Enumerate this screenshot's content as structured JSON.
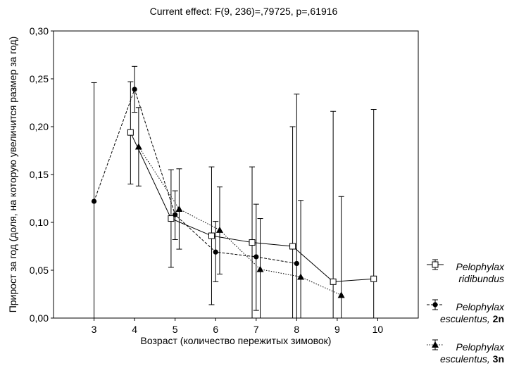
{
  "chart_data": {
    "type": "line",
    "title": "Current effect: F(9, 236)=,79725, p=,61916",
    "xlabel": "Возраст (количество пережитых зимовок)",
    "ylabel": "Прирост за год (доля, на которую увеличится размер за год)",
    "xlim": [
      2,
      11
    ],
    "ylim": [
      0,
      0.3
    ],
    "x_ticks": [
      3,
      4,
      5,
      6,
      7,
      8,
      9,
      10
    ],
    "y_ticks": [
      0,
      0.05,
      0.1,
      0.15,
      0.2,
      0.25,
      0.3
    ],
    "y_tick_labels": [
      "0,00",
      "0,05",
      "0,10",
      "0,15",
      "0,20",
      "0,25",
      "0,30"
    ],
    "grid": false,
    "legend_position": "right",
    "series": [
      {
        "name": "Pelophylax ridibundus",
        "name_parts": [
          "Pelophylax",
          "ridibundus",
          ""
        ],
        "marker": "open-square",
        "line": "solid",
        "offset": -0.1,
        "points": [
          {
            "x": 4,
            "y": 0.194,
            "lo": 0.14,
            "hi": 0.247
          },
          {
            "x": 5,
            "y": 0.104,
            "lo": 0.053,
            "hi": 0.155
          },
          {
            "x": 6,
            "y": 0.086,
            "lo": 0.014,
            "hi": 0.158
          },
          {
            "x": 7,
            "y": 0.079,
            "lo": 0.0,
            "hi": 0.158
          },
          {
            "x": 8,
            "y": 0.075,
            "lo": 0.0,
            "hi": 0.2
          },
          {
            "x": 9,
            "y": 0.038,
            "lo": 0.0,
            "hi": 0.216
          },
          {
            "x": 10,
            "y": 0.041,
            "lo": 0.0,
            "hi": 0.218
          }
        ]
      },
      {
        "name": "Pelophylax esculentus, 2n",
        "name_parts": [
          "Pelophylax",
          "esculentus, ",
          "2n"
        ],
        "marker": "filled-circle",
        "line": "dashed",
        "offset": 0,
        "points": [
          {
            "x": 3,
            "y": 0.122,
            "lo": 0.0,
            "hi": 0.246
          },
          {
            "x": 4,
            "y": 0.239,
            "lo": 0.215,
            "hi": 0.263
          },
          {
            "x": 5,
            "y": 0.108,
            "lo": 0.082,
            "hi": 0.133
          },
          {
            "x": 6,
            "y": 0.069,
            "lo": 0.038,
            "hi": 0.101
          },
          {
            "x": 7,
            "y": 0.064,
            "lo": 0.008,
            "hi": 0.119
          },
          {
            "x": 8,
            "y": 0.057,
            "lo": 0.0,
            "hi": 0.234
          }
        ]
      },
      {
        "name": "Pelophylax esculentus, 3n",
        "name_parts": [
          "Pelophylax",
          "esculentus, ",
          "3n"
        ],
        "marker": "filled-triangle",
        "line": "dotted",
        "offset": 0.1,
        "points": [
          {
            "x": 4,
            "y": 0.179,
            "lo": 0.138,
            "hi": 0.22
          },
          {
            "x": 5,
            "y": 0.114,
            "lo": 0.072,
            "hi": 0.156
          },
          {
            "x": 6,
            "y": 0.092,
            "lo": 0.046,
            "hi": 0.137
          },
          {
            "x": 7,
            "y": 0.051,
            "lo": 0.0,
            "hi": 0.104
          },
          {
            "x": 8,
            "y": 0.043,
            "lo": 0.0,
            "hi": 0.123
          },
          {
            "x": 9,
            "y": 0.024,
            "lo": 0.0,
            "hi": 0.127
          }
        ]
      }
    ]
  }
}
